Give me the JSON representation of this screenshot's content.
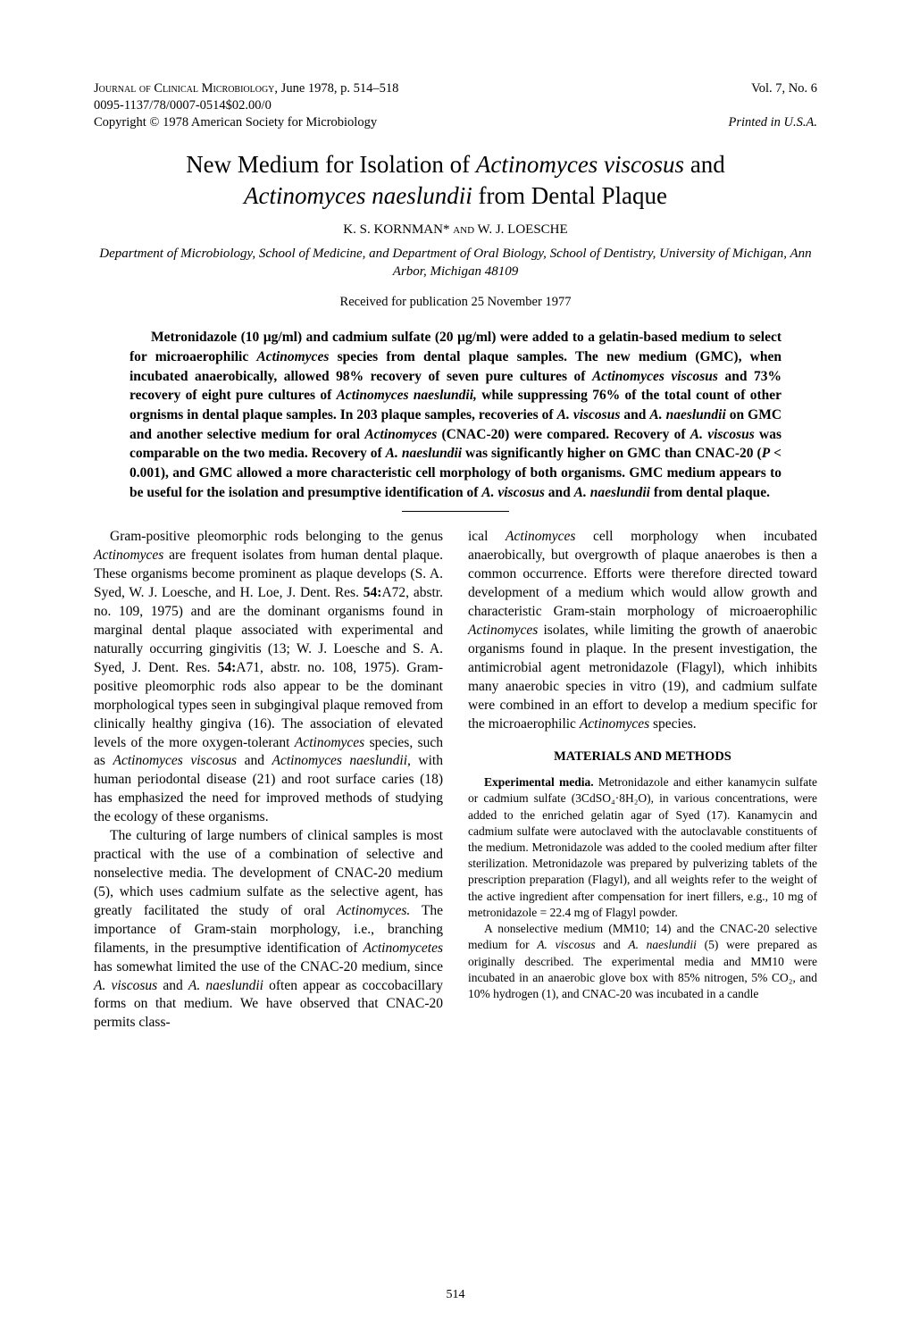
{
  "header": {
    "journal_line": "Journal of Clinical Microbiology,",
    "date_pages": " June 1978, p. 514–518",
    "issn": "0095-1137/78/0007-0514$02.00/0",
    "copyright": "Copyright © 1978   American Society for Microbiology",
    "volume": "Vol. 7, No. 6",
    "printed": "Printed in U.S.A."
  },
  "title_line1": "New Medium for Isolation of ",
  "title_italic1": "Actinomyces viscosus",
  "title_line2": " and ",
  "title_italic2": "Actinomyces naeslundii",
  "title_line3": " from Dental Plaque",
  "authors": "K. S. KORNMAN* ",
  "authors_and": "and",
  "authors2": " W. J. LOESCHE",
  "affiliation": "Department of Microbiology, School of Medicine, and Department of Oral Biology, School of Dentistry, University of Michigan, Ann Arbor, Michigan 48109",
  "received": "Received for publication 25 November 1977",
  "abstract": {
    "p1a": "Metronidazole (10 µg/ml) and cadmium sulfate (20 µg/ml) were added to a gelatin-based medium to select for microaerophilic ",
    "p1b": "Actinomyces",
    "p1c": " species from dental plaque samples. The new medium (GMC), when incubated anaerobically, allowed 98% recovery of seven pure cultures of ",
    "p1d": "Actinomyces viscosus",
    "p1e": " and 73% recovery of eight pure cultures of ",
    "p1f": "Actinomyces naeslundii,",
    "p1g": " while suppressing 76% of the total count of other orgnisms in dental plaque samples. In 203 plaque samples, recoveries of ",
    "p1h": "A. viscosus",
    "p1i": " and ",
    "p1j": "A. naeslundii",
    "p1k": " on GMC and another selective medium for oral ",
    "p1l": "Actinomyces",
    "p1m": " (CNAC-20) were compared. Recovery of ",
    "p1n": "A. viscosus",
    "p1o": " was comparable on the two media. Recovery of ",
    "p1p": "A. naeslundii",
    "p1q": " was significantly higher on GMC than CNAC-20 (",
    "p1r": "P",
    "p1s": " < 0.001), and GMC allowed a more characteristic cell morphology of both organisms. GMC medium appears to be useful for the isolation and presumptive identification of ",
    "p1t": "A. viscosus",
    "p1u": " and ",
    "p1v": "A. naeslundii",
    "p1w": " from dental plaque."
  },
  "leftcol": {
    "p1a": "Gram-positive pleomorphic rods belonging to the genus ",
    "p1b": "Actinomyces",
    "p1c": " are frequent isolates from human dental plaque. These organisms become prominent as plaque develops (S. A. Syed, W. J. Loesche, and H. Loe, J. Dent. Res. ",
    "p1d": "54:",
    "p1e": "A72, abstr. no. 109, 1975) and are the dominant organisms found in marginal dental plaque associated with experimental and naturally occurring gingivitis (13; W. J. Loesche and S. A. Syed, J. Dent. Res. ",
    "p1f": "54:",
    "p1g": "A71, abstr. no. 108, 1975). Gram-positive pleomorphic rods also appear to be the dominant morphological types seen in subgingival plaque removed from clinically healthy gingiva (16). The association of elevated levels of the more oxygen-tolerant ",
    "p1h": "Actinomyces",
    "p1i": " species, such as ",
    "p1j": "Actinomyces viscosus",
    "p1k": " and ",
    "p1l": "Actinomyces naeslundii,",
    "p1m": " with human periodontal disease (21) and root surface caries (18) has emphasized the need for improved methods of studying the ecology of these organisms.",
    "p2a": "The culturing of large numbers of clinical samples is most practical with the use of a combination of selective and nonselective media. The development of CNAC-20 medium (5), which uses cadmium sulfate as the selective agent, has greatly facilitated the study of oral ",
    "p2b": "Actinomyces.",
    "p2c": " The importance of Gram-stain morphology, i.e., branching filaments, in the presumptive identification of ",
    "p2d": "Actinomycetes",
    "p2e": " has somewhat limited the use of the CNAC-20 medium, since ",
    "p2f": "A. viscosus",
    "p2g": " and ",
    "p2h": "A. naeslundii",
    "p2i": " often appear as coccobacillary forms on that medium. We have observed that CNAC-20 permits class-"
  },
  "rightcol": {
    "p1a": "ical ",
    "p1b": "Actinomyces",
    "p1c": " cell morphology when incubated anaerobically, but overgrowth of plaque anaerobes is then a common occurrence. Efforts were therefore directed toward development of a medium which would allow growth and characteristic Gram-stain morphology of microaerophilic ",
    "p1d": "Actinomyces",
    "p1e": " isolates, while limiting the growth of anaerobic organisms found in plaque. In the present investigation, the antimicrobial agent metronidazole (Flagyl), which inhibits many anaerobic species in vitro (19), and cadmium sulfate were combined in an effort to develop a medium specific for the microaerophilic ",
    "p1f": "Actinomyces",
    "p1g": " species.",
    "section": "MATERIALS AND METHODS",
    "m1_runin": "Experimental media.",
    "m1a": " Metronidazole and either kanamycin sulfate or cadmium sulfate (3CdSO₄·8H₂O), in various concentrations, were added to the enriched gelatin agar of Syed (17). Kanamycin and cadmium sulfate were autoclaved with the autoclavable constituents of the medium. Metronidazole was added to the cooled medium after filter sterilization. Metronidazole was prepared by pulverizing tablets of the prescription preparation (Flagyl), and all weights refer to the weight of the active ingredient after compensation for inert fillers, e.g., 10 mg of metronidazole = 22.4 mg of Flagyl powder.",
    "m2a": "A nonselective medium (MM10; 14) and the CNAC-20 selective medium for ",
    "m2b": "A. viscosus",
    "m2c": " and ",
    "m2d": "A. naeslundii",
    "m2e": " (5) were prepared as originally described. The experimental media and MM10 were incubated in an anaerobic glove box with 85% nitrogen, 5% CO₂, and 10% hydrogen (1), and CNAC-20 was incubated in a candle"
  },
  "page_number": "514"
}
